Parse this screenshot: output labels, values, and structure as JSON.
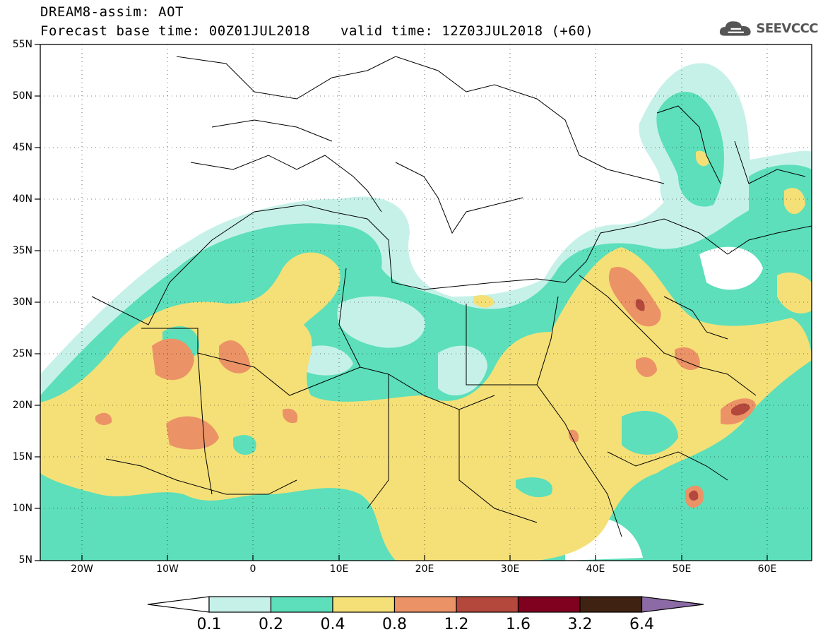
{
  "header": {
    "title": "DREAM8-assim: AOT",
    "base_time": "Forecast base time: 00Z01JUL2018",
    "valid_time": "valid time: 12Z03JUL2018 (+60)"
  },
  "logo": {
    "text": "SEEVCCC",
    "icon": "cloud-icon"
  },
  "map": {
    "lat_labels": [
      "55N",
      "50N",
      "45N",
      "40N",
      "35N",
      "30N",
      "25N",
      "20N",
      "15N",
      "10N",
      "5N"
    ],
    "lon_labels": [
      "20W",
      "10W",
      "0",
      "10E",
      "20E",
      "30E",
      "40E",
      "50E",
      "60E"
    ],
    "lat_range": [
      5,
      55
    ],
    "lon_range": [
      -25,
      65
    ]
  },
  "colorbar": {
    "labels": [
      "0.1",
      "0.2",
      "0.4",
      "0.8",
      "1.2",
      "1.6",
      "3.2",
      "6.4"
    ],
    "colors": [
      "#ffffff",
      "#c6f1e9",
      "#5cdfba",
      "#f5e077",
      "#eb9367",
      "#b4483d",
      "#800020",
      "#3f2212",
      "#8c6aa6"
    ]
  },
  "colors": {
    "c1": "#c6f1e9",
    "c2": "#5cdfba",
    "c3": "#f5e077",
    "c4": "#eb9367",
    "c5": "#b4483d"
  }
}
